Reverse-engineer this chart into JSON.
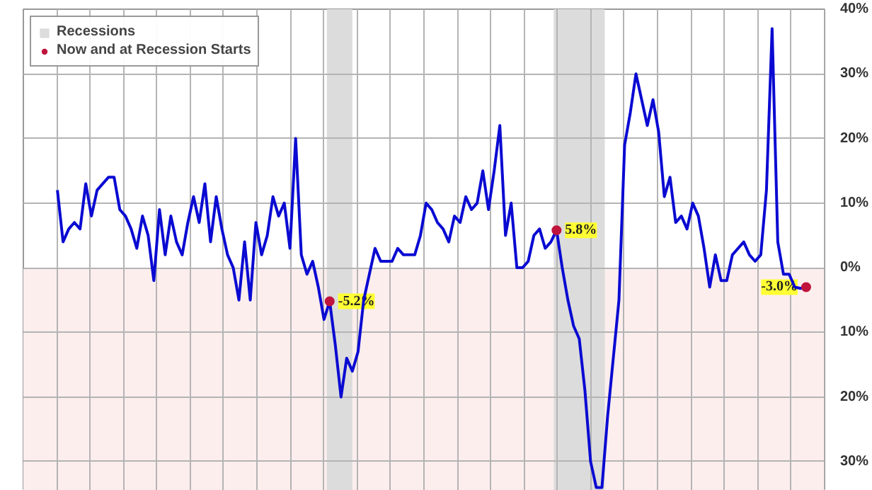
{
  "chart_data": {
    "type": "line",
    "categories": [
      null,
      null,
      null,
      null,
      null,
      null,
      null,
      null,
      null,
      null,
      null,
      null,
      null,
      null,
      null,
      null,
      null,
      null,
      null,
      null,
      null,
      null,
      null,
      null,
      null,
      null,
      null,
      null,
      null,
      null,
      null,
      null,
      null,
      null,
      null,
      null,
      null,
      null,
      null,
      null,
      null,
      null,
      null,
      null,
      null,
      null,
      null,
      null,
      null,
      null,
      null,
      null,
      null,
      null,
      null,
      null,
      null,
      null,
      null,
      null,
      null,
      null,
      null,
      null,
      null,
      null,
      null,
      null,
      null,
      null,
      null,
      null,
      null,
      null,
      null,
      null,
      null,
      null,
      null,
      null,
      null,
      null,
      null,
      null,
      null,
      null,
      null,
      null,
      null,
      null,
      null,
      null,
      null,
      null,
      null,
      null,
      null,
      null,
      null,
      null,
      null,
      null,
      null,
      null,
      null,
      null,
      null,
      null,
      null,
      null,
      null,
      null,
      null,
      null,
      null,
      null,
      null,
      null,
      null,
      null,
      null,
      null,
      null,
      null,
      null,
      null,
      null,
      null,
      null,
      null,
      null,
      null,
      null
    ],
    "ylim": [
      -34.5,
      40
    ],
    "yticks": [
      {
        "value": -30,
        "label": "30%"
      },
      {
        "value": -20,
        "label": "20%"
      },
      {
        "value": -10,
        "label": "10%"
      },
      {
        "value": 0,
        "label": "0%"
      },
      {
        "value": 10,
        "label": "10%"
      },
      {
        "value": 20,
        "label": "20%"
      },
      {
        "value": 30,
        "label": "30%"
      },
      {
        "value": 40,
        "label": "40%"
      }
    ],
    "grid": true,
    "legend": "top left",
    "annotations": [
      "Recessions"
    ],
    "bands": [
      {
        "axis": "y",
        "from": -34.5,
        "to": 0,
        "color": "#fdeeee"
      }
    ],
    "series": [
      {
        "color": "#0a0ad2",
        "values": [
          12,
          4,
          6,
          7,
          6,
          13,
          8,
          12,
          13,
          14,
          14,
          9,
          8,
          6,
          3,
          8,
          5,
          -2,
          9,
          2,
          8,
          4,
          2,
          7,
          11,
          7,
          13,
          4,
          11,
          6,
          2,
          0,
          -5,
          4,
          -5,
          7,
          2,
          5,
          11,
          8,
          10,
          3,
          20,
          2,
          -1,
          1,
          -3,
          -8,
          -5.2,
          -12,
          -20,
          -14,
          -16,
          -13,
          -5,
          -1,
          3,
          1,
          1,
          1,
          3,
          2,
          2,
          2,
          5,
          10,
          9,
          7,
          6,
          4,
          8,
          7,
          11,
          9,
          10,
          15,
          9,
          15,
          22,
          5,
          10,
          0,
          0,
          1,
          5,
          6,
          3,
          4,
          5.8,
          0,
          -5,
          -9,
          -11,
          -19,
          -30,
          -34,
          -34,
          -23,
          -14,
          -5,
          19,
          24,
          30,
          26,
          22,
          26,
          21,
          11,
          14,
          7,
          8,
          6,
          10,
          8,
          3,
          -3,
          2,
          -2,
          -2,
          2,
          3,
          4,
          2,
          1,
          2,
          12,
          37,
          4,
          -1,
          -1,
          -3,
          -3.2,
          -3.0
        ]
      },
      {
        "type": "scatter",
        "name": "Now and at Recession Starts",
        "color": "#c0143c",
        "marker": "circle",
        "values": [
          null,
          null,
          null,
          null,
          null,
          null,
          null,
          null,
          null,
          null,
          null,
          null,
          null,
          null,
          null,
          null,
          null,
          null,
          null,
          null,
          null,
          null,
          null,
          null,
          null,
          null,
          null,
          null,
          null,
          null,
          null,
          null,
          null,
          null,
          null,
          null,
          null,
          null,
          null,
          null,
          null,
          null,
          null,
          null,
          null,
          null,
          null,
          null,
          -5.2,
          null,
          null,
          null,
          null,
          null,
          null,
          null,
          null,
          null,
          null,
          null,
          null,
          null,
          null,
          null,
          null,
          null,
          null,
          null,
          null,
          null,
          null,
          null,
          null,
          null,
          null,
          null,
          null,
          null,
          null,
          null,
          null,
          null,
          null,
          null,
          null,
          null,
          null,
          null,
          5.8,
          null,
          null,
          null,
          null,
          null,
          null,
          null,
          null,
          null,
          null,
          null,
          null,
          null,
          null,
          null,
          null,
          null,
          null,
          null,
          null,
          null,
          null,
          null,
          null,
          null,
          null,
          null,
          null,
          null,
          null,
          null,
          null,
          null,
          null,
          null,
          null,
          null,
          null,
          null,
          null,
          null,
          null,
          null,
          -3.0
        ],
        "value_labels": [
          null,
          null,
          null,
          null,
          null,
          null,
          null,
          null,
          null,
          null,
          null,
          null,
          null,
          null,
          null,
          null,
          null,
          null,
          null,
          null,
          null,
          null,
          null,
          null,
          null,
          null,
          null,
          null,
          null,
          null,
          null,
          null,
          null,
          null,
          null,
          null,
          null,
          null,
          null,
          null,
          null,
          null,
          null,
          null,
          null,
          null,
          null,
          null,
          "-5.2%",
          null,
          null,
          null,
          null,
          null,
          null,
          null,
          null,
          null,
          null,
          null,
          null,
          null,
          null,
          null,
          null,
          null,
          null,
          null,
          null,
          null,
          null,
          null,
          null,
          null,
          null,
          null,
          null,
          null,
          null,
          null,
          null,
          null,
          null,
          null,
          null,
          null,
          null,
          null,
          "5.8%",
          null,
          null,
          null,
          null,
          null,
          null,
          null,
          null,
          null,
          null,
          null,
          null,
          null,
          null,
          null,
          null,
          null,
          null,
          null,
          null,
          null,
          null,
          null,
          null,
          null,
          null,
          null,
          null,
          null,
          null,
          null,
          null,
          null,
          null,
          null,
          null,
          null,
          null,
          null,
          null,
          null,
          null,
          null,
          "-3.0%"
        ]
      }
    ]
  }
}
